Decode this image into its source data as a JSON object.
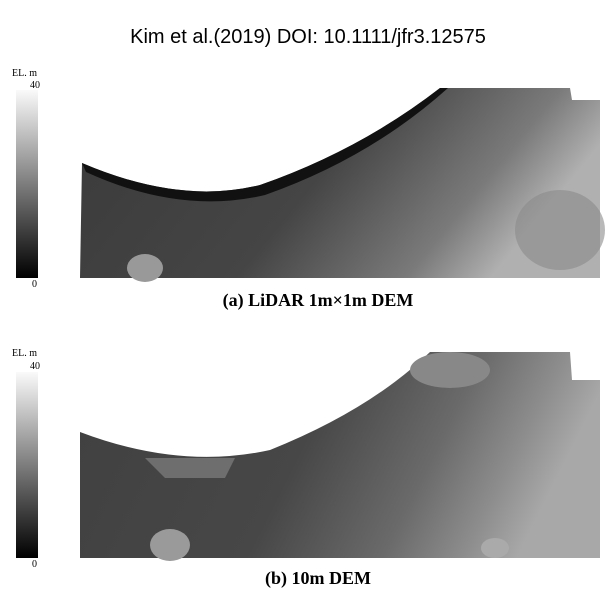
{
  "header": {
    "title": "Kim et al.(2019) DOI: 10.1111/jfr3.12575"
  },
  "panels": [
    {
      "legend": {
        "label": "EL. m",
        "max": 40,
        "min": 0
      },
      "caption": "(a) LiDAR 1m×1m DEM"
    },
    {
      "legend": {
        "label": "EL. m",
        "max": 40,
        "min": 0
      },
      "caption": "(b) 10m DEM"
    }
  ]
}
